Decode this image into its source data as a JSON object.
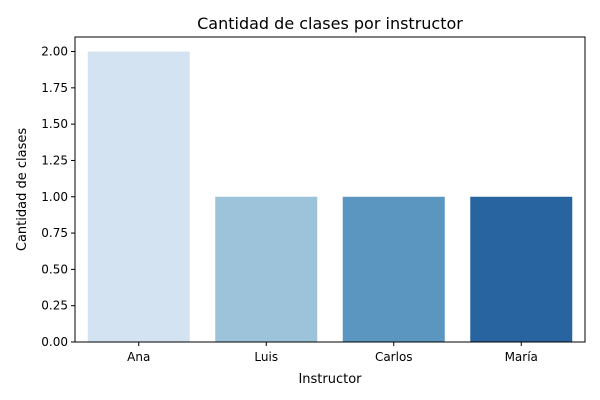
{
  "chart_data": {
    "type": "bar",
    "title": "Cantidad de clases por instructor",
    "xlabel": "Instructor",
    "ylabel": "Cantidad de clases",
    "categories": [
      "Ana",
      "Luis",
      "Carlos",
      "María"
    ],
    "values": [
      2,
      1,
      1,
      1
    ],
    "colors": [
      "#d3e3f2",
      "#9cc3da",
      "#5a96c0",
      "#2864a0"
    ],
    "ylim": [
      0,
      2.1
    ],
    "yticks": [
      "0.00",
      "0.25",
      "0.50",
      "0.75",
      "1.00",
      "1.25",
      "1.50",
      "1.75",
      "2.00"
    ],
    "grid": false,
    "legend": "none"
  }
}
